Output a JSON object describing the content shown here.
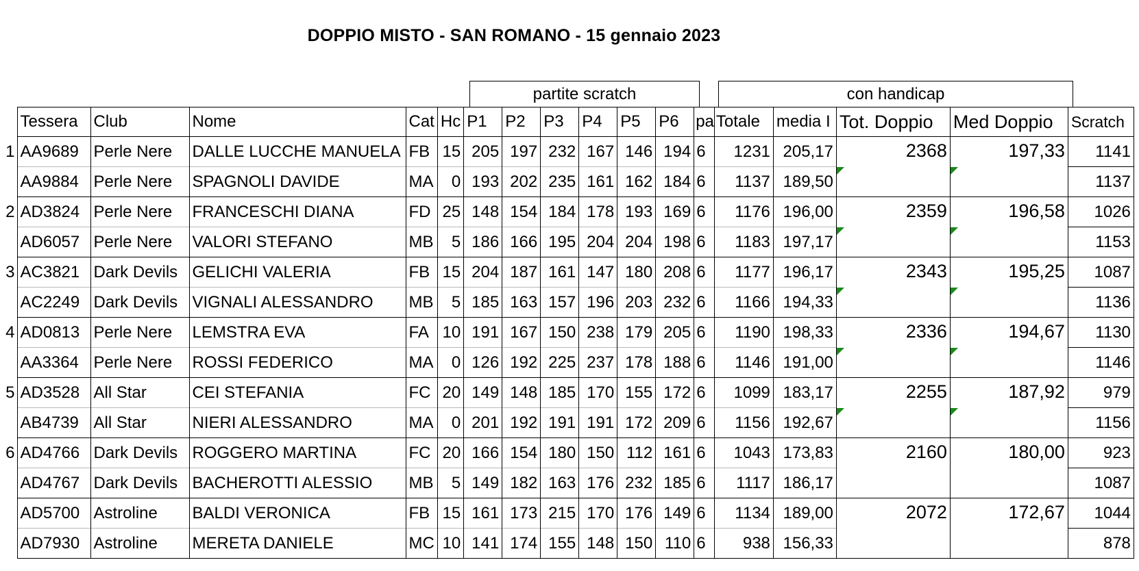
{
  "title": "DOPPIO MISTO - SAN ROMANO - 15 gennaio 2023",
  "groups": {
    "scratch": "partite scratch",
    "handicap": "con handicap"
  },
  "headers": {
    "tessera": "Tessera",
    "club": "Club",
    "nome": "Nome",
    "cat": "Cat",
    "hc": "Hc",
    "p1": "P1",
    "p2": "P2",
    "p3": "P3",
    "p4": "P4",
    "p5": "P5",
    "p6": "P6",
    "partite": "pa",
    "totale": "Totale",
    "media": "media I",
    "tot_doppio": "Tot. Doppio",
    "med_doppio": "Med Doppio",
    "scratch": "Scratch"
  },
  "flag_color": "#1a8a1a",
  "pairs": [
    {
      "rank": "1",
      "tot_doppio": "2368",
      "med_doppio": "197,33",
      "players": [
        {
          "tessera": "AA9689",
          "club": "Perle Nere",
          "nome": "DALLE LUCCHE MANUELA",
          "cat": "FB",
          "hc": "15",
          "p1": "205",
          "p2": "197",
          "p3": "232",
          "p4": "167",
          "p5": "146",
          "p6": "194",
          "partite": "6",
          "totale": "1231",
          "media": "205,17",
          "scratch": "1141"
        },
        {
          "tessera": "AA9884",
          "club": "Perle Nere",
          "nome": "SPAGNOLI DAVIDE",
          "cat": "MA",
          "hc": "0",
          "p1": "193",
          "p2": "202",
          "p3": "235",
          "p4": "161",
          "p5": "162",
          "p6": "184",
          "partite": "6",
          "totale": "1137",
          "media": "189,50",
          "scratch": "1137"
        }
      ]
    },
    {
      "rank": "2",
      "tot_doppio": "2359",
      "med_doppio": "196,58",
      "players": [
        {
          "tessera": "AD3824",
          "club": "Perle Nere",
          "nome": "FRANCESCHI  DIANA",
          "cat": "FD",
          "hc": "25",
          "p1": "148",
          "p2": "154",
          "p3": "184",
          "p4": "178",
          "p5": "193",
          "p6": "169",
          "partite": "6",
          "totale": "1176",
          "media": "196,00",
          "scratch": "1026"
        },
        {
          "tessera": "AD6057",
          "club": "Perle Nere",
          "nome": "VALORI STEFANO",
          "cat": "MB",
          "hc": "5",
          "p1": "186",
          "p2": "166",
          "p3": "195",
          "p4": "204",
          "p5": "204",
          "p6": "198",
          "partite": "6",
          "totale": "1183",
          "media": "197,17",
          "scratch": "1153"
        }
      ]
    },
    {
      "rank": "3",
      "tot_doppio": "2343",
      "med_doppio": "195,25",
      "players": [
        {
          "tessera": "AC3821",
          "club": "Dark Devils",
          "nome": "GELICHI  VALERIA",
          "cat": "FB",
          "hc": "15",
          "p1": "204",
          "p2": "187",
          "p3": "161",
          "p4": "147",
          "p5": "180",
          "p6": "208",
          "partite": "6",
          "totale": "1177",
          "media": "196,17",
          "scratch": "1087"
        },
        {
          "tessera": "AC2249",
          "club": "Dark Devils",
          "nome": "VIGNALI ALESSANDRO",
          "cat": "MB",
          "hc": "5",
          "p1": "185",
          "p2": "163",
          "p3": "157",
          "p4": "196",
          "p5": "203",
          "p6": "232",
          "partite": "6",
          "totale": "1166",
          "media": "194,33",
          "scratch": "1136"
        }
      ]
    },
    {
      "rank": "4",
      "tot_doppio": "2336",
      "med_doppio": "194,67",
      "players": [
        {
          "tessera": "AD0813",
          "club": "Perle Nere",
          "nome": "LEMSTRA EVA",
          "cat": "FA",
          "hc": "10",
          "p1": "191",
          "p2": "167",
          "p3": "150",
          "p4": "238",
          "p5": "179",
          "p6": "205",
          "partite": "6",
          "totale": "1190",
          "media": "198,33",
          "scratch": "1130"
        },
        {
          "tessera": "AA3364",
          "club": "Perle Nere",
          "nome": "ROSSI  FEDERICO",
          "cat": "MA",
          "hc": "0",
          "p1": "126",
          "p2": "192",
          "p3": "225",
          "p4": "237",
          "p5": "178",
          "p6": "188",
          "partite": "6",
          "totale": "1146",
          "media": "191,00",
          "scratch": "1146"
        }
      ]
    },
    {
      "rank": "5",
      "tot_doppio": "2255",
      "med_doppio": "187,92",
      "players": [
        {
          "tessera": "AD3528",
          "club": "All Star",
          "nome": "CEI STEFANIA",
          "cat": "FC",
          "hc": "20",
          "p1": "149",
          "p2": "148",
          "p3": "185",
          "p4": "170",
          "p5": "155",
          "p6": "172",
          "partite": "6",
          "totale": "1099",
          "media": "183,17",
          "scratch": "979"
        },
        {
          "tessera": "AB4739",
          "club": "All Star",
          "nome": "NIERI ALESSANDRO",
          "cat": "MA",
          "hc": "0",
          "p1": "201",
          "p2": "192",
          "p3": "191",
          "p4": "191",
          "p5": "172",
          "p6": "209",
          "partite": "6",
          "totale": "1156",
          "media": "192,67",
          "scratch": "1156"
        }
      ]
    },
    {
      "rank": "6",
      "tot_doppio": "2160",
      "med_doppio": "180,00",
      "players": [
        {
          "tessera": "AD4766",
          "club": "Dark Devils",
          "nome": "ROGGERO MARTINA",
          "cat": "FC",
          "hc": "20",
          "p1": "166",
          "p2": "154",
          "p3": "180",
          "p4": "150",
          "p5": "112",
          "p6": "161",
          "partite": "6",
          "totale": "1043",
          "media": "173,83",
          "scratch": "923"
        },
        {
          "tessera": "AD4767",
          "club": "Dark Devils",
          "nome": "BACHEROTTI ALESSIO",
          "cat": "MB",
          "hc": "5",
          "p1": "149",
          "p2": "182",
          "p3": "163",
          "p4": "176",
          "p5": "232",
          "p6": "185",
          "partite": "6",
          "totale": "1117",
          "media": "186,17",
          "scratch": "1087"
        }
      ]
    },
    {
      "rank": "",
      "tot_doppio": "2072",
      "med_doppio": "172,67",
      "players": [
        {
          "tessera": "AD5700",
          "club": "Astroline",
          "nome": "BALDI VERONICA",
          "cat": "FB",
          "hc": "15",
          "p1": "161",
          "p2": "173",
          "p3": "215",
          "p4": "170",
          "p5": "176",
          "p6": "149",
          "partite": "6",
          "totale": "1134",
          "media": "189,00",
          "scratch": "1044"
        },
        {
          "tessera": "AD7930",
          "club": "Astroline",
          "nome": "MERETA DANIELE",
          "cat": "MC",
          "hc": "10",
          "p1": "141",
          "p2": "174",
          "p3": "155",
          "p4": "148",
          "p5": "150",
          "p6": "110",
          "partite": "6",
          "totale": "938",
          "media": "156,33",
          "scratch": "878"
        }
      ]
    }
  ]
}
